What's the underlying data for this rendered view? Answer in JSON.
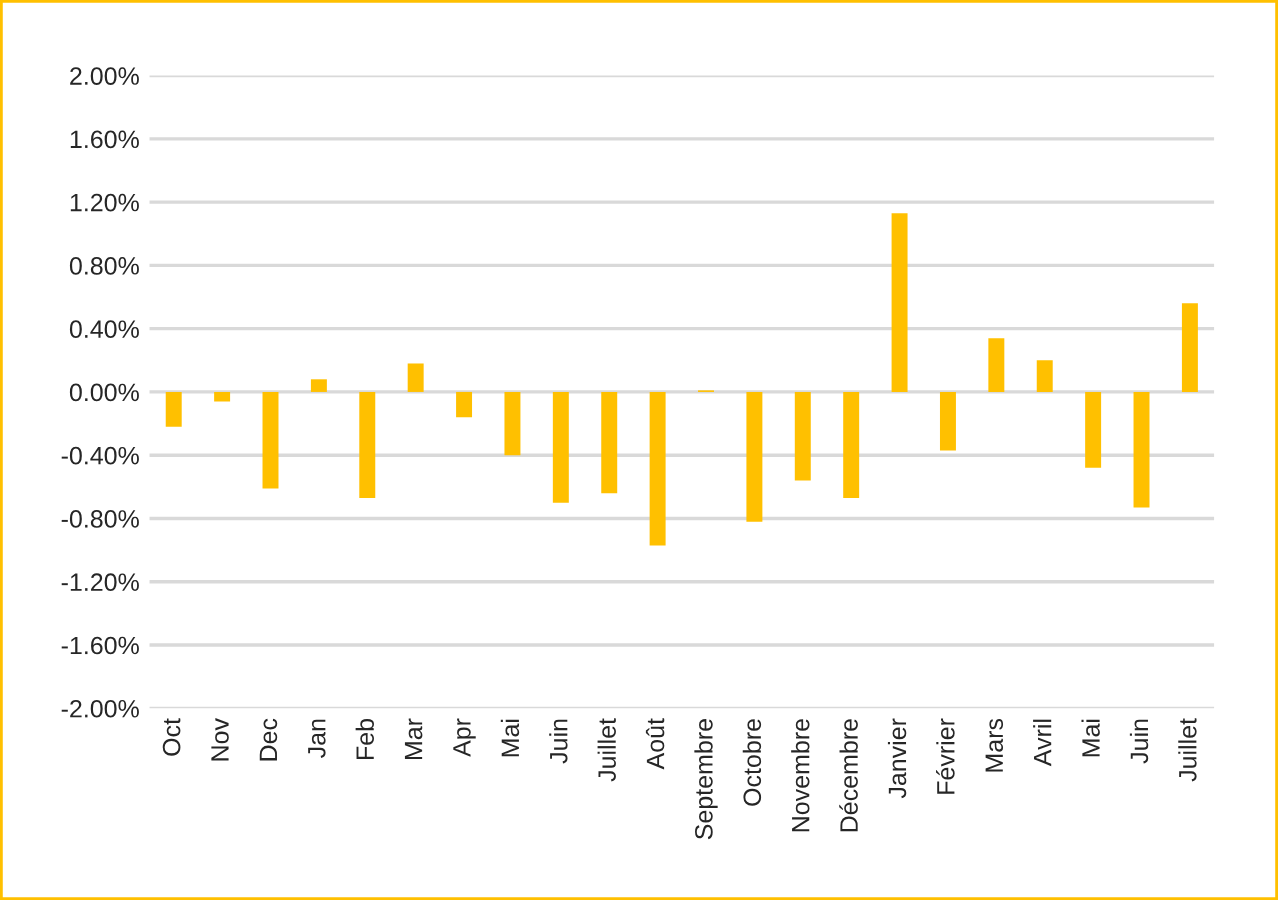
{
  "chart_data": {
    "type": "bar",
    "categories": [
      "Oct",
      "Nov",
      "Dec",
      "Jan",
      "Feb",
      "Mar",
      "Apr",
      "Mai",
      "Juin",
      "Juillet",
      "Août",
      "Septembre",
      "Octobre",
      "Novembre",
      "Décembre",
      "Janvier",
      "Février",
      "Mars",
      "Avril",
      "Mai",
      "Juin",
      "Juillet"
    ],
    "values": [
      -0.22,
      -0.06,
      -0.61,
      0.08,
      -0.67,
      0.18,
      -0.16,
      -0.4,
      -0.7,
      -0.64,
      -0.97,
      0.01,
      -0.82,
      -0.56,
      -0.67,
      1.13,
      -0.37,
      0.34,
      0.2,
      -0.48,
      -0.73,
      0.56
    ],
    "color": "#ffc000",
    "ylim": [
      -2.0,
      2.0
    ],
    "yticks": [
      {
        "value": -2.0,
        "label": "-2.00%"
      },
      {
        "value": -1.6,
        "label": "-1.60%"
      },
      {
        "value": -1.2,
        "label": "-1.20%"
      },
      {
        "value": -0.8,
        "label": "-0.80%"
      },
      {
        "value": -0.4,
        "label": "-0.40%"
      },
      {
        "value": 0.0,
        "label": "0.00%"
      },
      {
        "value": 0.4,
        "label": "0.40%"
      },
      {
        "value": 0.8,
        "label": "0.80%"
      },
      {
        "value": 1.2,
        "label": "1.20%"
      },
      {
        "value": 1.6,
        "label": "1.60%"
      },
      {
        "value": 2.0,
        "label": "2.00%"
      }
    ],
    "grid": "y"
  }
}
